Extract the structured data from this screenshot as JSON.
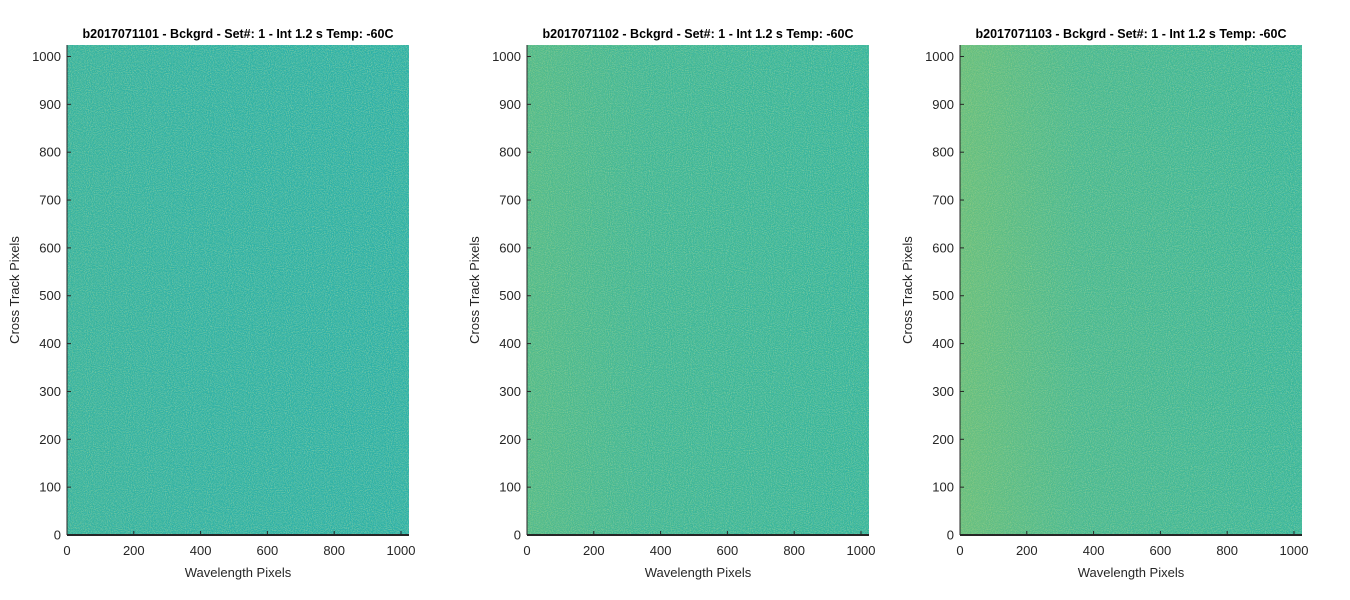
{
  "chart_data": [
    {
      "type": "heatmap",
      "title": "b2017071101 - Bckgrd - Set#: 1 - Int 1.2 s Temp: -60C",
      "xlabel": "Wavelength Pixels",
      "ylabel": "Cross Track Pixels",
      "xlim": [
        0,
        1024
      ],
      "ylim": [
        0,
        1024
      ],
      "xticks": [
        0,
        200,
        400,
        600,
        800,
        1000
      ],
      "yticks": [
        0,
        100,
        200,
        300,
        400,
        500,
        600,
        700,
        800,
        900,
        1000
      ],
      "colormap": "parula",
      "base_color": "#2bb0a4",
      "accent_color": "#7fc36a",
      "dark_color": "#1f8fb5",
      "edge_brightness": "low"
    },
    {
      "type": "heatmap",
      "title": "b2017071102 - Bckgrd - Set#: 1 - Int 1.2 s Temp: -60C",
      "xlabel": "Wavelength Pixels",
      "ylabel": "Cross Track Pixels",
      "xlim": [
        0,
        1024
      ],
      "ylim": [
        0,
        1024
      ],
      "xticks": [
        0,
        200,
        400,
        600,
        800,
        1000
      ],
      "yticks": [
        0,
        100,
        200,
        300,
        400,
        500,
        600,
        700,
        800,
        900,
        1000
      ],
      "colormap": "parula",
      "base_color": "#33b49a",
      "accent_color": "#9cc95c",
      "dark_color": "#1f8fb5",
      "edge_brightness": "medium"
    },
    {
      "type": "heatmap",
      "title": "b2017071103 - Bckgrd - Set#: 1 - Int 1.2 s Temp: -60C",
      "xlabel": "Wavelength Pixels",
      "ylabel": "Cross Track Pixels",
      "xlim": [
        0,
        1024
      ],
      "ylim": [
        0,
        1024
      ],
      "xticks": [
        0,
        200,
        400,
        600,
        800,
        1000
      ],
      "yticks": [
        0,
        100,
        200,
        300,
        400,
        500,
        600,
        700,
        800,
        900,
        1000
      ],
      "colormap": "parula",
      "base_color": "#36b598",
      "accent_color": "#a8cb58",
      "dark_color": "#1f8fb5",
      "edge_brightness": "high"
    }
  ]
}
